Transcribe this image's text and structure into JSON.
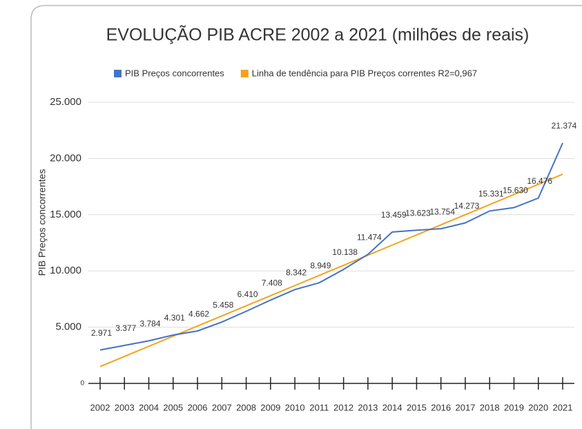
{
  "chart_data": {
    "type": "line",
    "title": "EVOLUÇÃO PIB ACRE 2002 a 2021 (milhões de reais)",
    "y_label": "PIB Preços concorrentes",
    "categories": [
      "2002",
      "2003",
      "2004",
      "2005",
      "2006",
      "2007",
      "2008",
      "2009",
      "2010",
      "2011",
      "2012",
      "2013",
      "2014",
      "2015",
      "2016",
      "2017",
      "2018",
      "2019",
      "2020",
      "2021"
    ],
    "series": [
      {
        "name": "PIB Preços concorrentes",
        "color": "#4472c4",
        "values": [
          2971,
          3377,
          3784,
          4301,
          4662,
          5458,
          6410,
          7408,
          8342,
          8949,
          10138,
          11474,
          13459,
          13623,
          13754,
          14273,
          15331,
          15630,
          16476,
          21374
        ],
        "value_labels": [
          "2.971",
          "3.377",
          "3.784",
          "4.301",
          "4.662",
          "5.458",
          "6.410",
          "7.408",
          "8.342",
          "8.949",
          "10.138",
          "11.474",
          "13.459",
          "13.623",
          "13.754",
          "14.273",
          "15.331",
          "15.630",
          "16.476",
          "21.374"
        ]
      },
      {
        "name": "Linha de tendência para PIB Preços correntes R2=0,967",
        "color": "#f4a31b",
        "values": [
          1500,
          2400,
          3300,
          4200,
          5100,
          6000,
          6900,
          7800,
          8700,
          9600,
          10500,
          11400,
          12300,
          13200,
          14100,
          15000,
          15900,
          16800,
          17700,
          18600
        ]
      }
    ],
    "ylim": [
      0,
      25000
    ],
    "yticks": [
      0,
      {
        "value": 5000,
        "label": "5.000"
      },
      {
        "value": 10000,
        "label": "10.000"
      },
      {
        "value": 15000,
        "label": "15.000"
      },
      {
        "value": 20000,
        "label": "20.000"
      },
      {
        "value": 25000,
        "label": "25.000"
      }
    ],
    "grid": true,
    "legend": "top"
  }
}
